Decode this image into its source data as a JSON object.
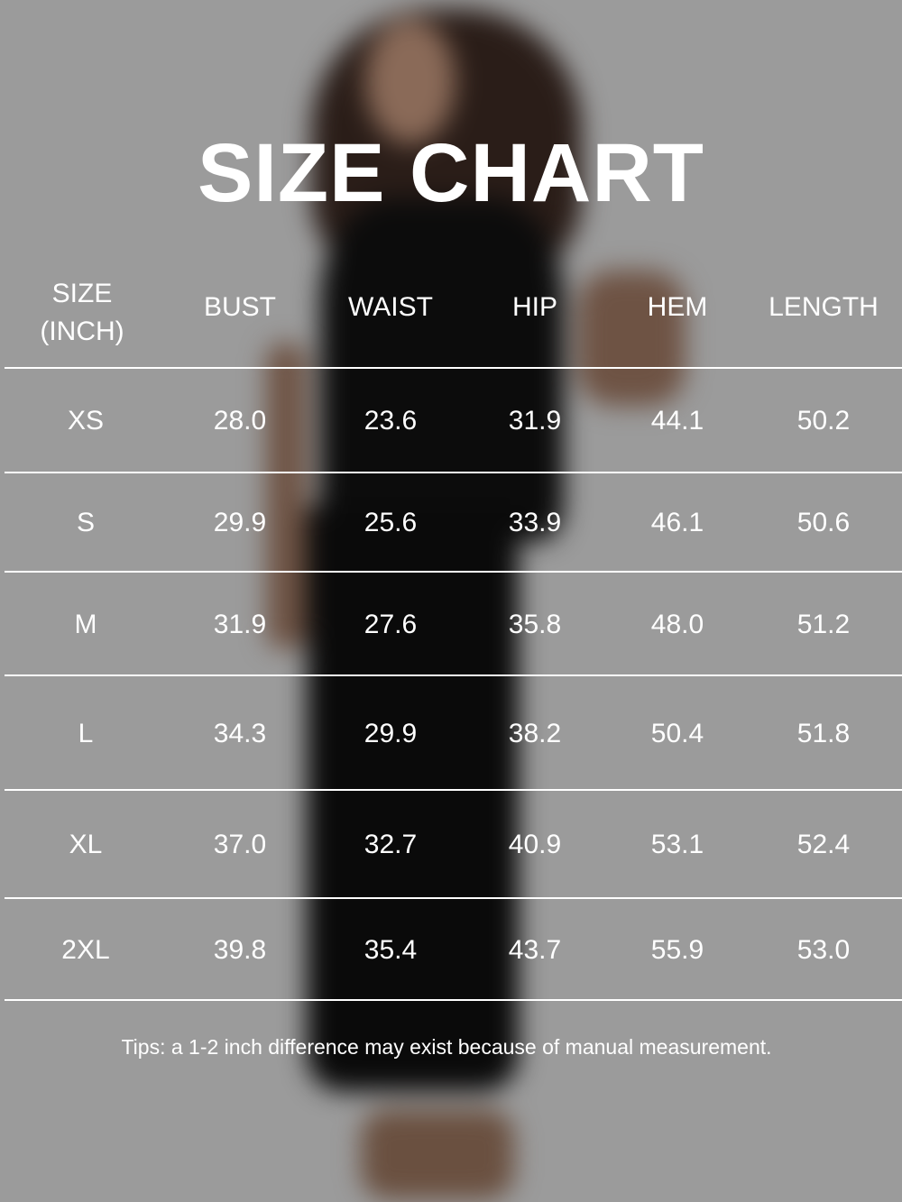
{
  "title": "SIZE CHART",
  "table": {
    "headers": [
      "SIZE\n(INCH)",
      "BUST",
      "WAIST",
      "HIP",
      "HEM",
      "LENGTH"
    ],
    "header_size_line1": "SIZE",
    "header_size_line2": "(INCH)",
    "rows": [
      [
        "XS",
        "28.0",
        "23.6",
        "31.9",
        "44.1",
        "50.2"
      ],
      [
        "S",
        "29.9",
        "25.6",
        "33.9",
        "46.1",
        "50.6"
      ],
      [
        "M",
        "31.9",
        "27.6",
        "35.8",
        "48.0",
        "51.2"
      ],
      [
        "L",
        "34.3",
        "29.9",
        "38.2",
        "50.4",
        "51.8"
      ],
      [
        "XL",
        "37.0",
        "32.7",
        "40.9",
        "53.1",
        "52.4"
      ],
      [
        "2XL",
        "39.8",
        "35.4",
        "43.7",
        "55.9",
        "53.0"
      ]
    ]
  },
  "tips": "Tips: a 1-2 inch difference may exist because of manual measurement.",
  "colors": {
    "background": "#9b9b9b",
    "text": "#ffffff"
  }
}
